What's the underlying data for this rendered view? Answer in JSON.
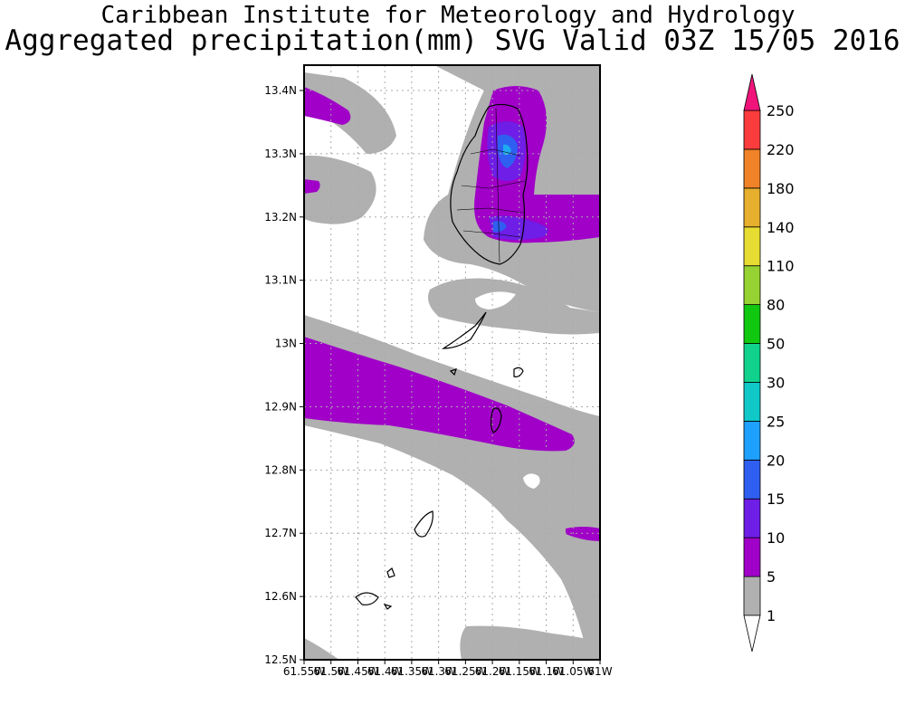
{
  "header": {
    "line1": "Caribbean Institute for Meteorology and Hydrology",
    "line2": "Aggregated precipitation(mm) SVG Valid 03Z 15/05 2016"
  },
  "map": {
    "lat_labels": [
      "13.4N",
      "13.3N",
      "13.2N",
      "13.1N",
      "13N",
      "12.9N",
      "12.8N",
      "12.7N",
      "12.6N",
      "12.5N"
    ],
    "lon_labels": [
      "61.55W",
      "61.5W",
      "61.45W",
      "61.4W",
      "61.35W",
      "61.3W",
      "61.25W",
      "61.2W",
      "61.15W",
      "61.1W",
      "61.05W",
      "61W"
    ],
    "colors": {
      "gray": "#b0b0b0",
      "purple": "#a000c8",
      "violet": "#6e1ee6",
      "blue": "#2f5ff0",
      "cyan": "#1eaaf0"
    }
  },
  "colorbar": {
    "levels": [
      "1",
      "5",
      "10",
      "15",
      "20",
      "25",
      "30",
      "50",
      "80",
      "110",
      "140",
      "180",
      "220",
      "250"
    ],
    "colors": [
      "#ffffff",
      "#b0b0b0",
      "#a000c8",
      "#6e1ee6",
      "#2f5ff0",
      "#1ea0ff",
      "#10c8c8",
      "#10d28c",
      "#10c810",
      "#96d232",
      "#e6dc32",
      "#e6af2d",
      "#f08228",
      "#fa3c3c",
      "#f0147a"
    ]
  }
}
